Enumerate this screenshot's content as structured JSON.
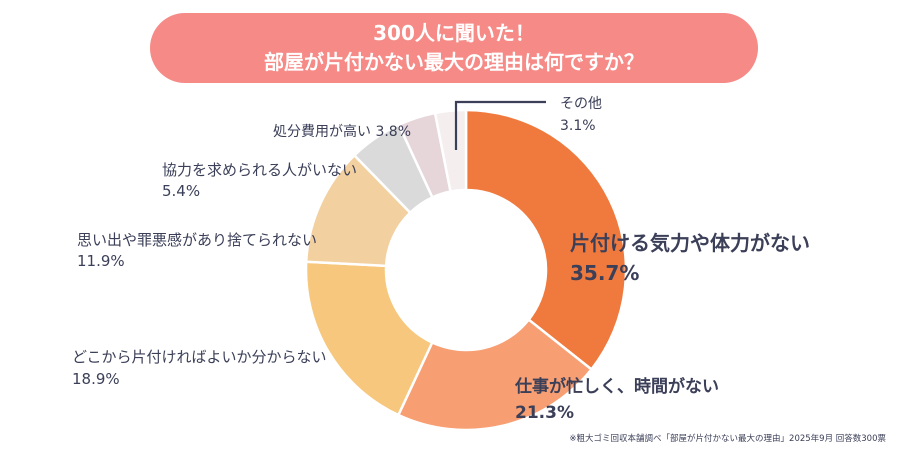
{
  "title": {
    "line1": "300人に聞いた！",
    "line2": "部屋が片付かない最大の理由は何ですか？"
  },
  "chart_data": {
    "type": "pie",
    "style": "donut",
    "start": "12 o'clock, clockwise",
    "slices": [
      {
        "id": "kiryoku",
        "label": "片付ける気力や体力がない",
        "value": 35.7,
        "display": "35.7%",
        "color": "#f07a3e",
        "emphasis": true
      },
      {
        "id": "shigoto",
        "label": "仕事が忙しく、時間がない",
        "value": 21.3,
        "display": "21.3%",
        "color": "#f79e72",
        "emphasis": true
      },
      {
        "id": "wakaranai",
        "label": "どこから片付ければよいか分からない",
        "value": 18.9,
        "display": "18.9%",
        "color": "#f6c77c"
      },
      {
        "id": "omoide",
        "label": "思い出や罪悪感があり捨てられない",
        "value": 11.9,
        "display": "11.9%",
        "color": "#f2d09f"
      },
      {
        "id": "kyoryoku",
        "label": "協力を求められる人がいない",
        "value": 5.4,
        "display": "5.4%",
        "color": "#dadada"
      },
      {
        "id": "hiyo",
        "label": "処分費用が高い",
        "value": 3.8,
        "display": "3.8%",
        "color": "#e6d6da"
      },
      {
        "id": "sonota",
        "label": "その他",
        "value": 3.1,
        "display": "3.1%",
        "color": "#f4eeee"
      }
    ]
  },
  "footnote": "※粗大ゴミ回収本舗調べ「部屋が片付かない最大の理由」2025年9月 回答数300票",
  "colors": {
    "title_bg": "#f58a86",
    "text": "#3b3f58",
    "leader": "#3b3f58"
  }
}
